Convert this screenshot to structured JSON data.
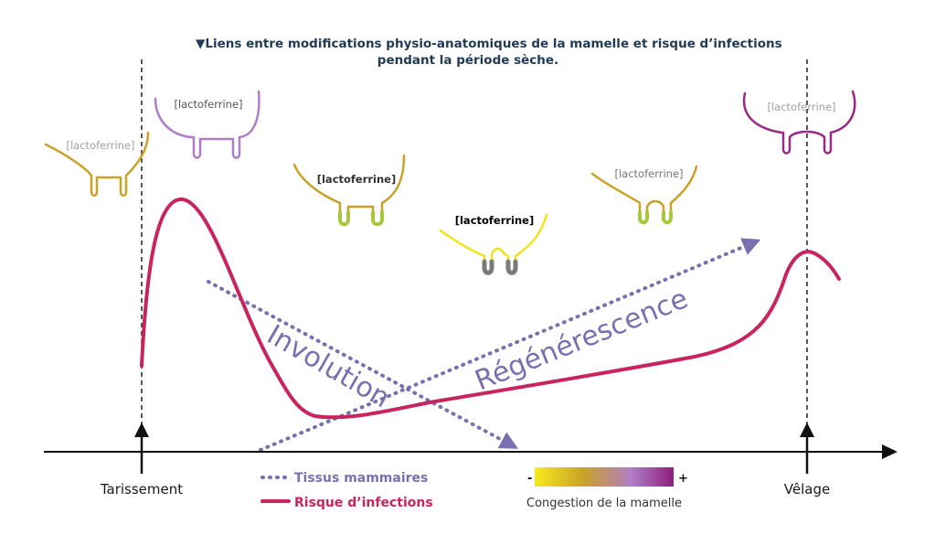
{
  "title": {
    "marker": "▼",
    "line1": "Liens entre modifications physio-anatomiques de la mamelle et risque d’infections",
    "line2": "pendant la période sèche."
  },
  "glands": [
    {
      "label": "[lactoferrine]",
      "color": "#c9a227",
      "tip_color": "#c9a227",
      "label_color": "#a0a0a0",
      "bold": false
    },
    {
      "label": "[lactoferrine]",
      "color": "#b07cc6",
      "tip_color": "#b07cc6",
      "label_color": "#555555",
      "bold": false
    },
    {
      "label": "[lactoferrine]",
      "color": "#c9a227",
      "tip_color": "#a6c83a",
      "label_color": "#333333",
      "bold": true
    },
    {
      "label": "[lactoferrine]",
      "color": "#f2e21e",
      "tip_color": "#7b7b7b",
      "label_color": "#000000",
      "bold": true
    },
    {
      "label": "[lactoferrine]",
      "color": "#c9a227",
      "tip_color": "#a6c83a",
      "label_color": "#777777",
      "bold": false
    },
    {
      "label": "[lactoferrine]",
      "color": "#9b2a86",
      "tip_color": "#9b2a86",
      "label_color": "#a0a0a0",
      "bold": false
    }
  ],
  "phases": {
    "involution": "Involution",
    "regeneration": "Régénérescence"
  },
  "axis": {
    "start_label": "Tarissement",
    "end_label": "Vêlage"
  },
  "legend": {
    "tissus_label": "Tissus mammaires",
    "risque_label": "Risque d’infections",
    "tissus_color": "#7b6fb0",
    "risque_color": "#c8245e"
  },
  "gradient": {
    "minus": "-",
    "plus": "+",
    "caption": "Congestion de la mamelle",
    "colors": [
      "#f7ea1c",
      "#c9a227",
      "#b07cc6",
      "#8e1f7f"
    ]
  }
}
